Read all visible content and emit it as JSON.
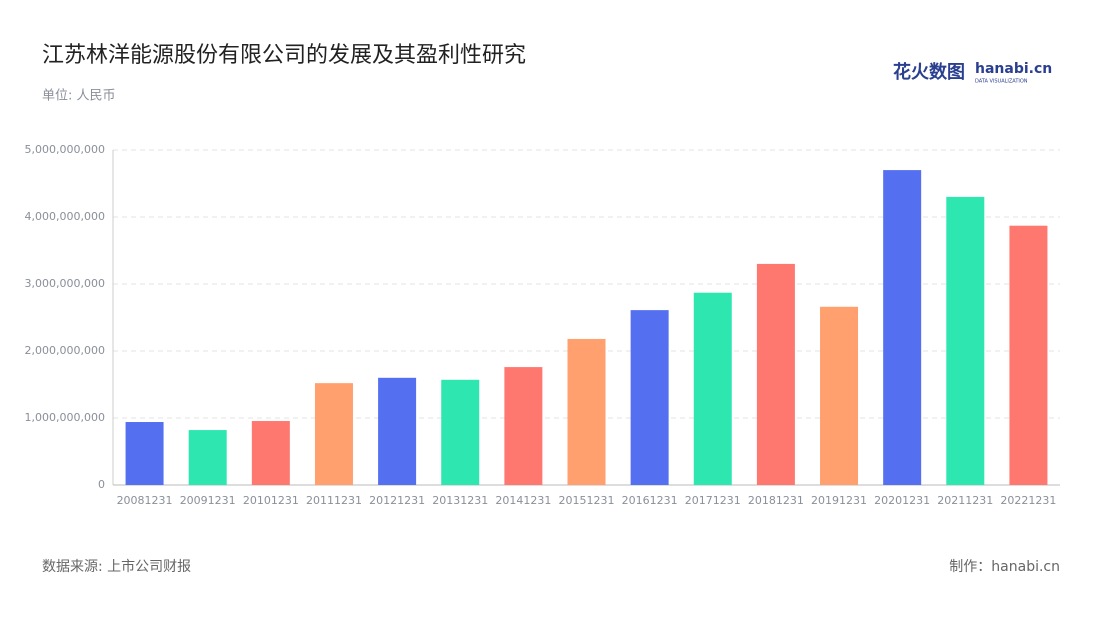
{
  "chart_data": {
    "type": "bar",
    "title": "江苏林洋能源股份有限公司的发展及其盈利性研究",
    "subtitle": "单位: 人民币",
    "source": "数据来源: 上市公司财报",
    "credit": "制作：hanabi.cn",
    "logo": {
      "name": "花火数图",
      "site": "hanabi.cn",
      "tagline": "DATA VISUALIZATION"
    },
    "categories": [
      "20081231",
      "20091231",
      "20101231",
      "20111231",
      "20121231",
      "20131231",
      "20141231",
      "20151231",
      "20161231",
      "20171231",
      "20181231",
      "20191231",
      "20201231",
      "20211231",
      "20221231"
    ],
    "values": [
      940000000,
      820000000,
      955000000,
      1520000000,
      1600000000,
      1570000000,
      1760000000,
      2180000000,
      2610000000,
      2870000000,
      3300000000,
      2660000000,
      4700000000,
      4300000000,
      3870000000
    ],
    "colors": [
      "#5470f0",
      "#2ee6b0",
      "#ff7870",
      "#ffa06e",
      "#5470f0",
      "#2ee6b0",
      "#ff7870",
      "#ffa06e",
      "#5470f0",
      "#2ee6b0",
      "#ff7870",
      "#ffa06e",
      "#5470f0",
      "#2ee6b0",
      "#ff7870"
    ],
    "ylim": [
      0,
      5000000000
    ],
    "yticks": [
      0,
      {
        "value": 1000000000,
        "label": "1,000,000,000"
      },
      {
        "value": 2000000000,
        "label": "2,000,000,000"
      },
      {
        "value": 3000000000,
        "label": "3,000,000,000"
      },
      {
        "value": 4000000000,
        "label": "4,000,000,000"
      },
      {
        "value": 5000000000,
        "label": "5,000,000,000"
      }
    ],
    "grid": true
  }
}
